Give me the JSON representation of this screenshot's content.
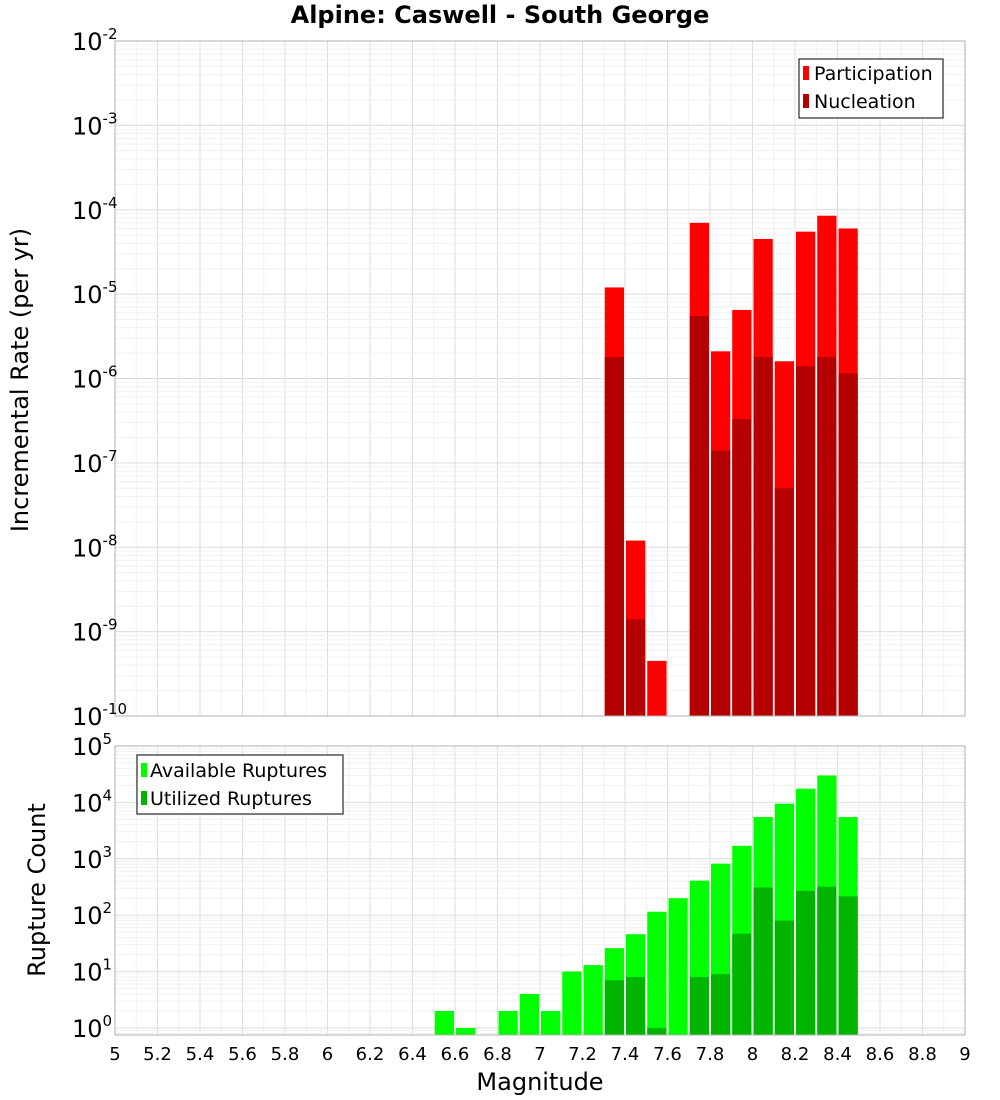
{
  "chart_data": [
    {
      "type": "bar",
      "title": "Alpine: Caswell - South George",
      "xlabel": "",
      "ylabel": "Incremental Rate (per yr)",
      "yscale": "log",
      "ylim": [
        1e-10,
        0.01
      ],
      "xlim": [
        5,
        9
      ],
      "grid": true,
      "legend_position": "top-right",
      "bar_width": 0.1,
      "series": [
        {
          "name": "Participation",
          "color": "#ff0000",
          "x": [
            7.35,
            7.45,
            7.55,
            7.75,
            7.85,
            7.95,
            8.05,
            8.15,
            8.25,
            8.35,
            8.45
          ],
          "values": [
            1.2e-05,
            1.2e-08,
            4.5e-10,
            7e-05,
            2.1e-06,
            6.5e-06,
            4.5e-05,
            1.6e-06,
            5.5e-05,
            8.5e-05,
            6e-05
          ]
        },
        {
          "name": "Nucleation",
          "color": "#b40000",
          "x": [
            7.35,
            7.45,
            7.75,
            7.85,
            7.95,
            8.05,
            8.15,
            8.25,
            8.35,
            8.45
          ],
          "values": [
            1.8e-06,
            1.4e-09,
            5.5e-06,
            1.4e-07,
            3.3e-07,
            1.8e-06,
            5e-08,
            1.4e-06,
            1.8e-06,
            1.15e-06
          ]
        }
      ]
    },
    {
      "type": "bar",
      "title": "",
      "xlabel": "Magnitude",
      "ylabel": "Rupture Count",
      "yscale": "log",
      "ylim": [
        0.75,
        100000.0
      ],
      "xlim": [
        5,
        9
      ],
      "grid": true,
      "legend_position": "top-left",
      "bar_width": 0.1,
      "xticks": [
        "5",
        "5.2",
        "5.4",
        "5.6",
        "5.8",
        "6",
        "6.2",
        "6.4",
        "6.6",
        "6.8",
        "7",
        "7.2",
        "7.4",
        "7.6",
        "7.8",
        "8",
        "8.2",
        "8.4",
        "8.6",
        "8.8",
        "9"
      ],
      "series": [
        {
          "name": "Available Ruptures",
          "color": "#00ff00",
          "x": [
            6.55,
            6.65,
            6.85,
            6.95,
            7.05,
            7.15,
            7.25,
            7.35,
            7.45,
            7.55,
            7.65,
            7.75,
            7.85,
            7.95,
            8.05,
            8.15,
            8.25,
            8.35,
            8.45
          ],
          "values": [
            2,
            1,
            2,
            4,
            2,
            10,
            13,
            26,
            46,
            115,
            200,
            410,
            820,
            1700,
            5500,
            9500,
            17500,
            30000,
            5500
          ]
        },
        {
          "name": "Utilized Ruptures",
          "color": "#00b400",
          "x": [
            7.35,
            7.45,
            7.55,
            7.75,
            7.85,
            7.95,
            8.05,
            8.15,
            8.25,
            8.35,
            8.45
          ],
          "values": [
            7,
            8,
            1,
            8,
            9,
            47,
            310,
            80,
            270,
            320,
            215
          ]
        }
      ]
    }
  ]
}
